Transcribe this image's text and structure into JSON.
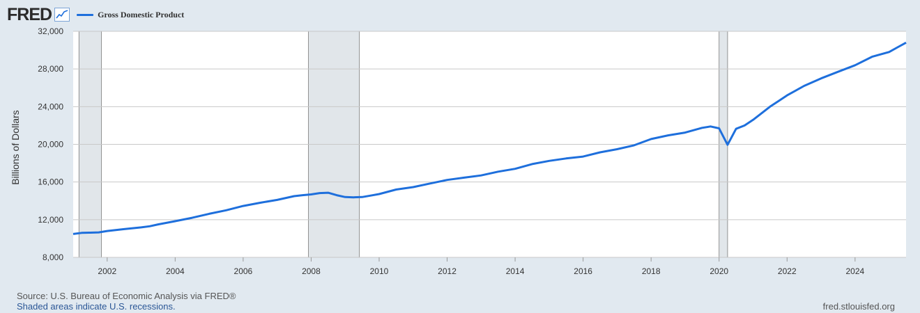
{
  "brand": {
    "name": "FRED",
    "icon": "line-chart-icon"
  },
  "legend": {
    "label": "Gross Domestic Product",
    "color": "#1e6fdc"
  },
  "footer": {
    "source": "Source: U.S. Bureau of Economic Analysis via FRED®",
    "note": "Shaded areas indicate U.S. recessions.",
    "site": "fred.stlouisfed.org"
  },
  "colors": {
    "background": "#e1e9f0",
    "plot_bg": "#ffffff",
    "recession": "#e1e6ea",
    "line": "#1e6fdc"
  },
  "chart_data": {
    "type": "line",
    "title": "",
    "xlabel": "",
    "ylabel": "Billions of Dollars",
    "xlim": [
      2001.0,
      2025.5
    ],
    "ylim": [
      8000,
      32000
    ],
    "y_ticks": [
      8000,
      12000,
      16000,
      20000,
      24000,
      28000,
      32000
    ],
    "y_tick_labels": [
      "8,000",
      "12,000",
      "16,000",
      "20,000",
      "24,000",
      "28,000",
      "32,000"
    ],
    "x_ticks": [
      2002,
      2004,
      2006,
      2008,
      2010,
      2012,
      2014,
      2016,
      2018,
      2020,
      2022,
      2024
    ],
    "x_tick_labels": [
      "2002",
      "2004",
      "2006",
      "2008",
      "2010",
      "2012",
      "2014",
      "2016",
      "2018",
      "2020",
      "2022",
      "2024"
    ],
    "grid": true,
    "recessions": [
      {
        "start": 2001.17,
        "end": 2001.83
      },
      {
        "start": 2007.92,
        "end": 2009.42
      },
      {
        "start": 2020.0,
        "end": 2020.25
      }
    ],
    "series": [
      {
        "name": "Gross Domestic Product",
        "color": "#1e6fdc",
        "x": [
          2001.0,
          2001.25,
          2001.5,
          2001.75,
          2002.0,
          2002.5,
          2003.0,
          2003.25,
          2003.5,
          2004.0,
          2004.5,
          2005.0,
          2005.5,
          2006.0,
          2006.5,
          2007.0,
          2007.5,
          2007.75,
          2008.0,
          2008.25,
          2008.5,
          2008.75,
          2009.0,
          2009.25,
          2009.5,
          2009.75,
          2010.0,
          2010.5,
          2011.0,
          2011.5,
          2012.0,
          2012.5,
          2013.0,
          2013.5,
          2014.0,
          2014.5,
          2015.0,
          2015.5,
          2016.0,
          2016.5,
          2017.0,
          2017.5,
          2018.0,
          2018.5,
          2019.0,
          2019.5,
          2019.75,
          2020.0,
          2020.25,
          2020.5,
          2020.75,
          2021.0,
          2021.25,
          2021.5,
          2021.75,
          2022.0,
          2022.5,
          2023.0,
          2023.5,
          2024.0,
          2024.5,
          2025.0,
          2025.25,
          2025.5
        ],
        "values": [
          10480,
          10600,
          10620,
          10650,
          10800,
          11000,
          11180,
          11300,
          11500,
          11840,
          12200,
          12620,
          13000,
          13460,
          13800,
          14100,
          14500,
          14600,
          14680,
          14820,
          14860,
          14600,
          14400,
          14370,
          14400,
          14560,
          14720,
          15200,
          15460,
          15840,
          16220,
          16460,
          16700,
          17100,
          17400,
          17900,
          18240,
          18500,
          18700,
          19150,
          19480,
          19900,
          20560,
          20950,
          21250,
          21750,
          21900,
          21700,
          19950,
          21650,
          22000,
          22600,
          23300,
          24000,
          24600,
          25200,
          26200,
          27000,
          27700,
          28400,
          29300,
          29800,
          30300,
          30800
        ]
      }
    ]
  }
}
